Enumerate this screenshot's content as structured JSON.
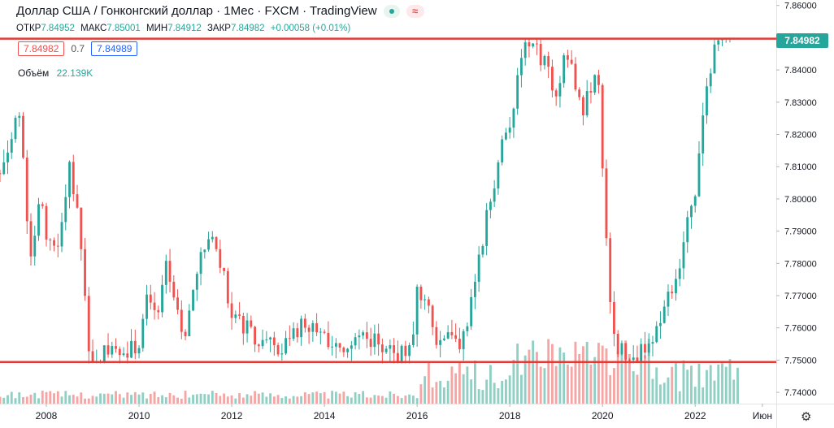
{
  "header": {
    "title": "Доллар США / Гонконгский доллар · 1Мес · FXCM · TradingView",
    "wave_symbol": "≈",
    "ohlc": [
      {
        "label": "ОТКР",
        "value": "7.84952"
      },
      {
        "label": "МАКС",
        "value": "7.85001"
      },
      {
        "label": "МИН",
        "value": "7.84912"
      },
      {
        "label": "ЗАКР",
        "value": "7.84982"
      },
      {
        "label": "",
        "value": "+0.00058 (+0.01%)"
      }
    ],
    "bid": "7.84982",
    "spread": "0.7",
    "ask": "7.84989",
    "volume_label": "Объём",
    "volume_value": "22.139K"
  },
  "last_price_label": "7.84982",
  "gear_symbol": "⚙",
  "colors": {
    "up": "#26a69a",
    "down": "#ef5350",
    "line": "#e53935",
    "vol_up": "#8fcfc4",
    "vol_down": "#f5a5a3"
  },
  "chart_data": {
    "type": "candlestick",
    "interval": "1M",
    "y_ticks": [
      "7.86000",
      "7.85000",
      "7.84000",
      "7.83000",
      "7.82000",
      "7.81000",
      "7.80000",
      "7.79000",
      "7.78000",
      "7.77000",
      "7.76000",
      "7.75000",
      "7.74000"
    ],
    "ylim": [
      7.7365,
      7.8617
    ],
    "x_ticks": [
      {
        "label": "2008",
        "x": 2008.0
      },
      {
        "label": "2010",
        "x": 2010.0
      },
      {
        "label": "2012",
        "x": 2012.0
      },
      {
        "label": "2014",
        "x": 2014.0
      },
      {
        "label": "2016",
        "x": 2016.0
      },
      {
        "label": "2018",
        "x": 2018.0
      },
      {
        "label": "2020",
        "x": 2020.0
      },
      {
        "label": "2022",
        "x": 2022.0
      },
      {
        "label": "Июн",
        "x": 2023.45
      }
    ],
    "xlim": [
      2007.0,
      2023.75
    ],
    "horizontal_lines": [
      7.8497,
      7.7494
    ],
    "anchors": [
      [
        2007.0,
        7.808
      ],
      [
        2007.1,
        7.812
      ],
      [
        2007.25,
        7.82
      ],
      [
        2007.45,
        7.828
      ],
      [
        2007.55,
        7.8
      ],
      [
        2007.7,
        7.78
      ],
      [
        2007.85,
        7.8
      ],
      [
        2008.0,
        7.79
      ],
      [
        2008.2,
        7.782
      ],
      [
        2008.4,
        7.8
      ],
      [
        2008.5,
        7.81
      ],
      [
        2008.65,
        7.8
      ],
      [
        2008.8,
        7.775
      ],
      [
        2008.9,
        7.752
      ],
      [
        2009.0,
        7.75
      ],
      [
        2009.3,
        7.752
      ],
      [
        2009.6,
        7.751
      ],
      [
        2010.0,
        7.755
      ],
      [
        2010.2,
        7.77
      ],
      [
        2010.4,
        7.765
      ],
      [
        2010.6,
        7.78
      ],
      [
        2010.75,
        7.77
      ],
      [
        2011.0,
        7.755
      ],
      [
        2011.2,
        7.775
      ],
      [
        2011.5,
        7.79
      ],
      [
        2011.75,
        7.78
      ],
      [
        2012.0,
        7.765
      ],
      [
        2012.3,
        7.76
      ],
      [
        2012.6,
        7.755
      ],
      [
        2013.0,
        7.754
      ],
      [
        2013.5,
        7.76
      ],
      [
        2014.0,
        7.757
      ],
      [
        2014.5,
        7.754
      ],
      [
        2015.0,
        7.757
      ],
      [
        2015.5,
        7.752
      ],
      [
        2015.9,
        7.752
      ],
      [
        2016.0,
        7.77
      ],
      [
        2016.2,
        7.77
      ],
      [
        2016.4,
        7.757
      ],
      [
        2016.7,
        7.758
      ],
      [
        2016.9,
        7.755
      ],
      [
        2017.1,
        7.762
      ],
      [
        2017.3,
        7.778
      ],
      [
        2017.5,
        7.795
      ],
      [
        2017.8,
        7.815
      ],
      [
        2018.0,
        7.82
      ],
      [
        2018.2,
        7.845
      ],
      [
        2018.4,
        7.846
      ],
      [
        2018.6,
        7.846
      ],
      [
        2018.8,
        7.84
      ],
      [
        2019.0,
        7.83
      ],
      [
        2019.2,
        7.844
      ],
      [
        2019.4,
        7.838
      ],
      [
        2019.55,
        7.827
      ],
      [
        2019.75,
        7.835
      ],
      [
        2019.9,
        7.84
      ],
      [
        2020.05,
        7.795
      ],
      [
        2020.2,
        7.76
      ],
      [
        2020.35,
        7.752
      ],
      [
        2020.6,
        7.753
      ],
      [
        2020.8,
        7.752
      ],
      [
        2021.0,
        7.754
      ],
      [
        2021.2,
        7.76
      ],
      [
        2021.4,
        7.77
      ],
      [
        2021.6,
        7.775
      ],
      [
        2021.8,
        7.79
      ],
      [
        2022.0,
        7.8
      ],
      [
        2022.2,
        7.83
      ],
      [
        2022.4,
        7.845
      ],
      [
        2022.55,
        7.847
      ],
      [
        2022.7,
        7.849
      ],
      [
        2022.95,
        7.8498
      ]
    ]
  }
}
